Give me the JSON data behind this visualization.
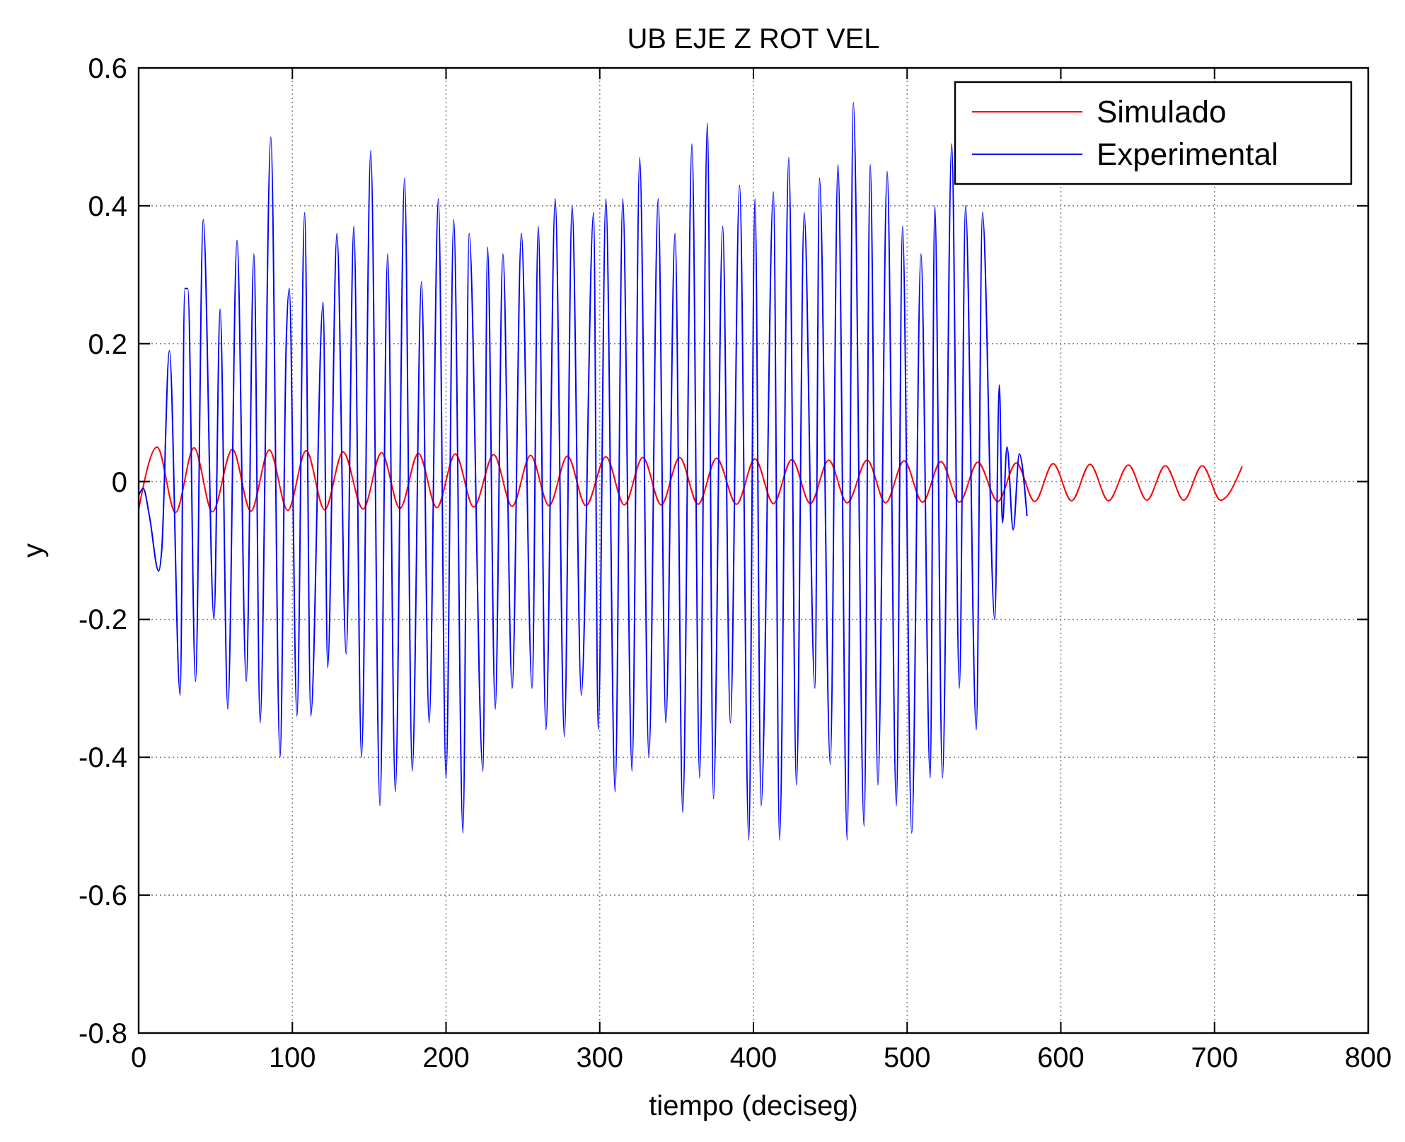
{
  "chart_data": {
    "type": "line",
    "title": "UB EJE Z ROT VEL",
    "xlabel": "tiempo (deciseg)",
    "ylabel": "y",
    "xlim": [
      0,
      800
    ],
    "xticks": [
      0,
      100,
      200,
      300,
      400,
      500,
      600,
      700,
      800
    ],
    "ylim": [
      -0.8,
      0.6
    ],
    "yticks": [
      -0.8,
      -0.6,
      -0.4,
      -0.2,
      0,
      0.2,
      0.4,
      0.6
    ],
    "grid": true,
    "legend": "top right",
    "line_style": "solid",
    "marker": "none",
    "series": [
      {
        "name": "Simulado",
        "color": "#ff0000",
        "x": [
          0,
          12,
          24,
          36,
          48,
          61,
          73,
          85,
          97,
          109,
          121,
          133,
          146,
          158,
          170,
          182,
          194,
          206,
          218,
          231,
          243,
          255,
          267,
          279,
          291,
          304,
          316,
          328,
          340,
          352,
          364,
          376,
          389,
          401,
          413,
          425,
          437,
          449,
          461,
          474,
          486,
          498,
          510,
          522,
          534,
          546,
          559,
          571,
          583,
          595,
          607,
          619,
          631,
          644,
          656,
          668,
          680,
          692,
          704,
          718
        ],
        "values": [
          -0.04,
          0.05,
          -0.045,
          0.049,
          -0.044,
          0.047,
          -0.043,
          0.046,
          -0.042,
          0.045,
          -0.041,
          0.043,
          -0.04,
          0.042,
          -0.039,
          0.041,
          -0.038,
          0.04,
          -0.037,
          0.039,
          -0.036,
          0.038,
          -0.035,
          0.037,
          -0.035,
          0.036,
          -0.034,
          0.035,
          -0.034,
          0.035,
          -0.033,
          0.034,
          -0.033,
          0.033,
          -0.032,
          0.032,
          -0.032,
          0.031,
          -0.031,
          0.031,
          -0.031,
          0.03,
          -0.03,
          0.029,
          -0.03,
          0.028,
          -0.029,
          0.027,
          -0.029,
          0.026,
          -0.028,
          0.025,
          -0.028,
          0.024,
          -0.027,
          0.023,
          -0.027,
          0.023,
          -0.027,
          0.022
        ]
      },
      {
        "name": "Experimental",
        "color": "#0000ff",
        "x": [
          0,
          3,
          7,
          13,
          15,
          20,
          27,
          30,
          32,
          37,
          42,
          49,
          53,
          58,
          64,
          70,
          75,
          79,
          86,
          92,
          96,
          98,
          103,
          108,
          112,
          120,
          123,
          129,
          135,
          140,
          145,
          151,
          157,
          162,
          167,
          173,
          178,
          184,
          189,
          195,
          200,
          205,
          211,
          215,
          224,
          227,
          232,
          237,
          243,
          249,
          256,
          260,
          265,
          271,
          277,
          282,
          288,
          296,
          299,
          304,
          310,
          315,
          321,
          326,
          332,
          338,
          343,
          349,
          354,
          360,
          365,
          370,
          374,
          380,
          385,
          391,
          397,
          401,
          405,
          413,
          417,
          423,
          428,
          433,
          440,
          443,
          450,
          455,
          461,
          465,
          472,
          476,
          481,
          487,
          493,
          497,
          503,
          509,
          515,
          518,
          523,
          529,
          534,
          538,
          545,
          549,
          557,
          560,
          562,
          565,
          569,
          573,
          578
        ],
        "values": [
          -0.02,
          -0.01,
          -0.05,
          -0.13,
          -0.1,
          0.19,
          -0.31,
          0.28,
          0.28,
          -0.29,
          0.38,
          -0.2,
          0.25,
          -0.33,
          0.35,
          -0.29,
          0.33,
          -0.35,
          0.5,
          -0.4,
          0.2,
          0.28,
          -0.34,
          0.39,
          -0.34,
          0.26,
          -0.27,
          0.36,
          -0.25,
          0.37,
          -0.4,
          0.48,
          -0.47,
          0.33,
          -0.45,
          0.44,
          -0.42,
          0.29,
          -0.35,
          0.41,
          -0.43,
          0.38,
          -0.51,
          0.36,
          -0.42,
          0.34,
          -0.33,
          0.33,
          -0.3,
          0.36,
          -0.3,
          0.37,
          -0.36,
          0.41,
          -0.37,
          0.4,
          -0.31,
          0.39,
          -0.36,
          0.41,
          -0.45,
          0.41,
          -0.42,
          0.47,
          -0.4,
          0.41,
          -0.35,
          0.36,
          -0.48,
          0.49,
          -0.43,
          0.52,
          -0.46,
          0.37,
          -0.35,
          0.43,
          -0.52,
          0.41,
          -0.47,
          0.42,
          -0.52,
          0.47,
          -0.44,
          0.39,
          -0.3,
          0.44,
          -0.41,
          0.46,
          -0.52,
          0.55,
          -0.5,
          0.46,
          -0.44,
          0.45,
          -0.47,
          0.37,
          -0.51,
          0.33,
          -0.43,
          0.4,
          -0.43,
          0.49,
          -0.3,
          0.4,
          -0.36,
          0.39,
          -0.2,
          0.14,
          -0.06,
          0.05,
          -0.07,
          0.04,
          -0.05
        ]
      }
    ]
  }
}
